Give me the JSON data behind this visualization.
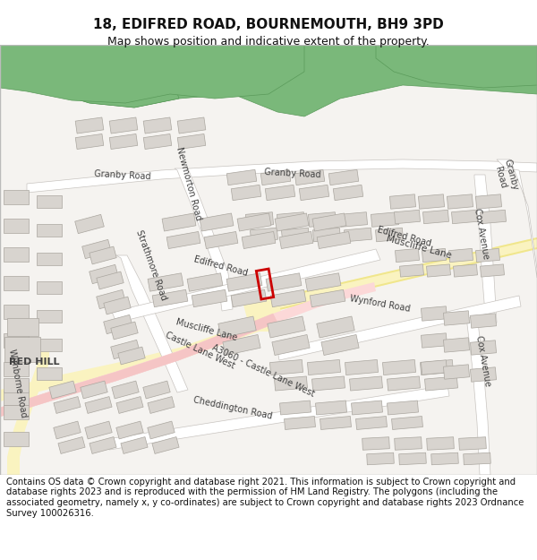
{
  "title_line1": "18, EDIFRED ROAD, BOURNEMOUTH, BH9 3PD",
  "title_line2": "Map shows position and indicative extent of the property.",
  "footer_text": "Contains OS data © Crown copyright and database right 2021. This information is subject to Crown copyright and database rights 2023 and is reproduced with the permission of HM Land Registry. The polygons (including the associated geometry, namely x, y co-ordinates) are subject to Crown copyright and database rights 2023 Ordnance Survey 100026316.",
  "map_bg": "#f5f3f0",
  "road_yellow": "#f0e68c",
  "road_yellow_fill": "#faf3c0",
  "road_pink": "#f5c5c5",
  "road_pink_fill": "#fcd8d8",
  "road_white": "#ffffff",
  "road_edge": "#c8c4c0",
  "building_color": "#d8d4cf",
  "building_edge": "#aaa69f",
  "green_color": "#7ab87a",
  "green_edge": "#5a9a5a",
  "highlight_red": "#cc0000",
  "text_color": "#404040",
  "header_bg": "#ffffff",
  "map_border": "#cccccc",
  "title_fontsize": 11,
  "subtitle_fontsize": 9,
  "footer_fontsize": 7.2
}
